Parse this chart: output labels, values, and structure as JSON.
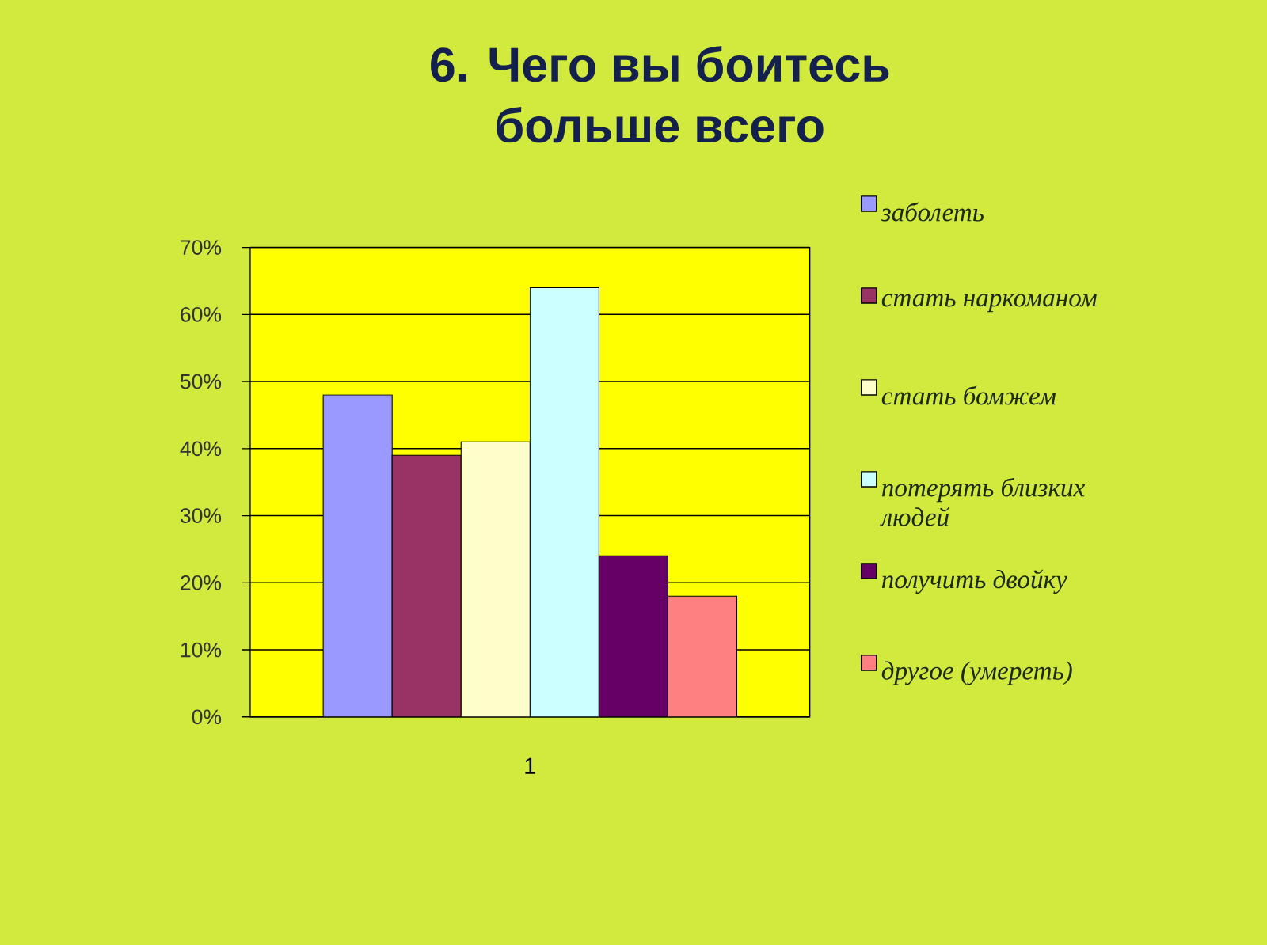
{
  "chart_data": {
    "type": "bar",
    "title": "6. Чего вы боитесь больше всего",
    "categories": [
      "1"
    ],
    "series": [
      {
        "name": "заболеть",
        "color": "#9999ff",
        "values": [
          48
        ]
      },
      {
        "name": "стать наркоманом",
        "color": "#993366",
        "values": [
          39
        ]
      },
      {
        "name": "стать бомжем",
        "color": "#ffffcc",
        "values": [
          41
        ]
      },
      {
        "name": "потерять близких людей",
        "color": "#ccffff",
        "values": [
          64
        ]
      },
      {
        "name": "получить двойку",
        "color": "#660066",
        "values": [
          24
        ]
      },
      {
        "name": "другое (умереть)",
        "color": "#ff8080",
        "values": [
          18
        ]
      }
    ],
    "ylim": [
      0,
      70
    ],
    "yticks": [
      {
        "value": 0,
        "label": "0%"
      },
      {
        "value": 10,
        "label": "10%"
      },
      {
        "value": 20,
        "label": "20%"
      },
      {
        "value": 30,
        "label": "30%"
      },
      {
        "value": 40,
        "label": "40%"
      },
      {
        "value": 50,
        "label": "50%"
      },
      {
        "value": 60,
        "label": "60%"
      },
      {
        "value": 70,
        "label": "70%"
      }
    ],
    "grid": "y",
    "legend": "right"
  }
}
